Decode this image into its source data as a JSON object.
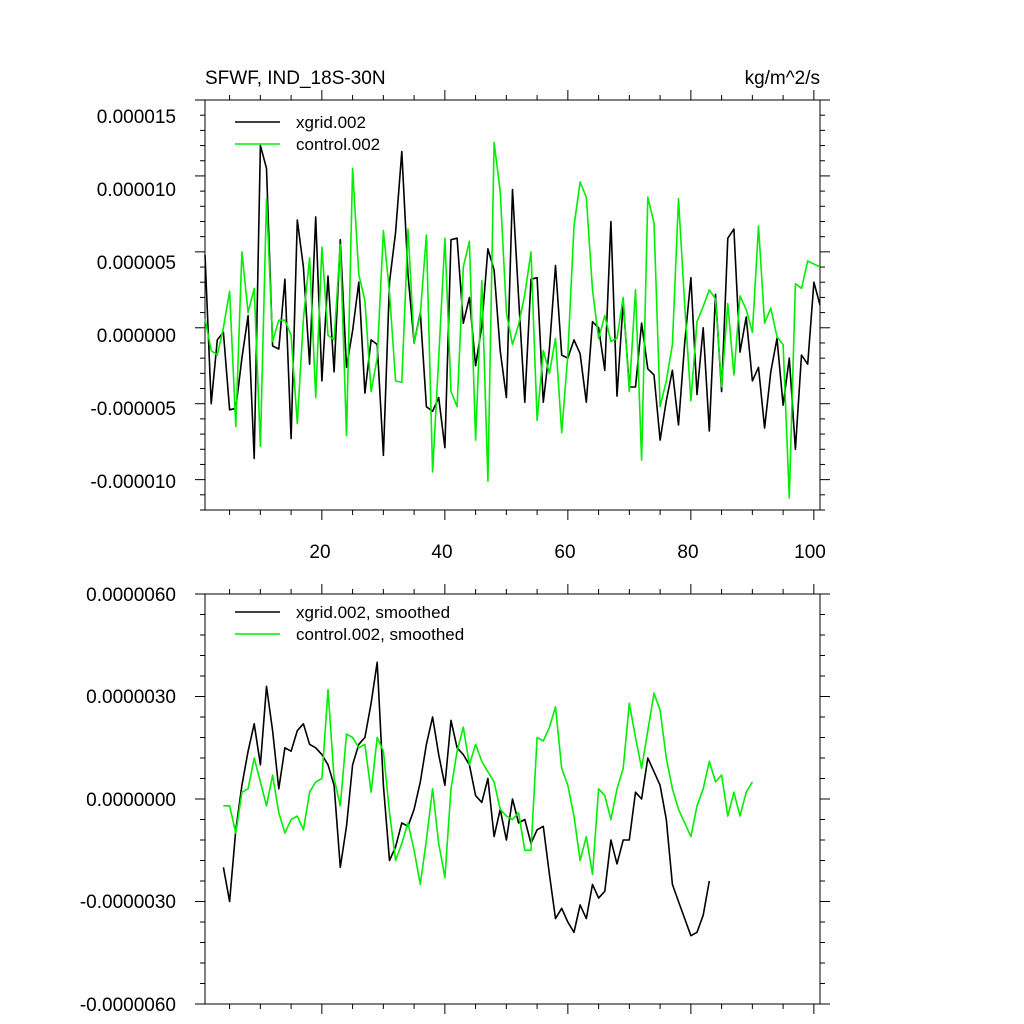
{
  "chart_data": [
    {
      "type": "line",
      "title": "SFWF, IND_18S-30N",
      "units": "kg/m^2/s",
      "xlim": [
        1,
        101
      ],
      "ylim": [
        -1.2e-05,
        1.5e-05
      ],
      "x_ticks": [
        20,
        40,
        60,
        80,
        100
      ],
      "x_tick_labels": [
        "20",
        "40",
        "60",
        "80",
        "100"
      ],
      "y_ticks": [
        1.5e-05,
        1e-05,
        5e-06,
        0,
        -5e-06,
        -1e-05
      ],
      "y_tick_labels": [
        "0.000015",
        "0.000010",
        "0.000005",
        "0.000000",
        "-0.000005",
        "-0.000010"
      ],
      "legend_position": "top-left",
      "series": [
        {
          "name": "xgrid.002",
          "color": "#000000",
          "values": [
            4.8,
            -5.0,
            -0.8,
            -0.3,
            -5.4,
            -5.3,
            -2.0,
            0.8,
            -8.6,
            12.0,
            10.5,
            -1.2,
            -1.4,
            3.2,
            -7.3,
            7.1,
            4.0,
            -2.4,
            7.3,
            -3.5,
            3.4,
            -2.9,
            5.8,
            -2.6,
            -0.2,
            3.0,
            -4.3,
            -0.8,
            -1.1,
            -8.4,
            3.0,
            6.3,
            11.6,
            3.5,
            -1.0,
            1.0,
            -5.2,
            -5.5,
            -4.6,
            -7.9,
            5.8,
            5.9,
            0.3,
            2.0,
            -2.5,
            0.1,
            5.2,
            3.8,
            -1.5,
            -4.6,
            9.1,
            2.0,
            -4.9,
            3.2,
            3.3,
            -4.9,
            -1.4,
            4.1,
            -1.8,
            -2.0,
            -0.8,
            -1.7,
            -4.9,
            0.4,
            0.0,
            -2.8,
            7.0,
            -4.5,
            1.7,
            -3.9,
            -3.9,
            0.3,
            -2.7,
            -3.1,
            -7.4,
            -4.8,
            -2.8,
            -6.4,
            -1.0,
            3.3,
            -4.4,
            0.0,
            -6.8,
            2.2,
            -4.2,
            5.9,
            6.5,
            -1.6,
            0.7,
            -3.5,
            -2.6,
            -6.6,
            -2.9,
            -0.7,
            -5.1,
            -2.0,
            -8.0,
            -1.8,
            -2.4,
            3.0,
            1.5
          ]
        },
        {
          "name": "control.002",
          "color": "#00ee00",
          "values": [
            0.6,
            -1.5,
            -1.8,
            0.0,
            2.4,
            -6.5,
            5.0,
            1.0,
            2.6,
            -7.8,
            8.5,
            -0.9,
            0.5,
            0.5,
            -0.5,
            -6.3,
            0.6,
            4.6,
            -4.6,
            5.3,
            -0.5,
            -0.8,
            5.5,
            -7.1,
            10.5,
            3.5,
            1.8,
            -4.2,
            -2.0,
            6.4,
            2.3,
            -3.5,
            -3.6,
            6.5,
            -1.0,
            0.9,
            6.1,
            -9.5,
            -2.0,
            5.9,
            -4.2,
            -5.2,
            4.0,
            5.7,
            -7.4,
            3.1,
            -10.1,
            12.2,
            9.0,
            1.0,
            -1.1,
            0.2,
            2.2,
            5.0,
            -6.1,
            -1.5,
            -3.0,
            -0.7,
            -6.9,
            -1.8,
            6.7,
            9.6,
            8.6,
            2.5,
            -0.7,
            0.8,
            -0.9,
            -0.7,
            2.0,
            -4.2,
            2.5,
            -8.7,
            8.6,
            6.9,
            -5.2,
            -3.5,
            -1.1,
            8.5,
            1.5,
            -4.8,
            0.4,
            1.4,
            2.5,
            1.9,
            -3.9,
            1.6,
            -3.1,
            2.1,
            1.2,
            -0.3,
            6.7,
            0.3,
            1.3,
            -0.6,
            -1.1,
            -11.2,
            2.9,
            2.6,
            4.4,
            4.2,
            4.0
          ]
        }
      ]
    },
    {
      "type": "line",
      "title": "",
      "units": "",
      "xlim": [
        1,
        101
      ],
      "ylim": [
        -6e-06,
        6e-06
      ],
      "x_ticks": [
        20,
        40,
        60,
        80,
        100
      ],
      "x_tick_labels": [],
      "y_ticks": [
        6e-06,
        3e-06,
        0,
        -3e-06,
        -6e-06
      ],
      "y_tick_labels": [
        "0.0000060",
        "0.0000030",
        "0.0000000",
        "-0.0000030",
        "-0.0000060"
      ],
      "legend_position": "top-left",
      "series": [
        {
          "name": "xgrid.002, smoothed",
          "color": "#000000",
          "x_start": 4,
          "values": [
            -2.0,
            -3.0,
            -0.9,
            0.4,
            1.4,
            2.2,
            1.0,
            3.3,
            2.0,
            0.3,
            1.5,
            1.4,
            2.0,
            2.2,
            1.6,
            1.5,
            1.3,
            1.0,
            0.4,
            -2.0,
            -0.8,
            1.0,
            1.6,
            1.8,
            2.8,
            4.0,
            0.4,
            -1.8,
            -1.4,
            -0.7,
            -0.8,
            -0.3,
            0.5,
            1.6,
            2.4,
            1.3,
            0.4,
            2.3,
            1.5,
            1.3,
            1.0,
            0.1,
            -0.1,
            0.6,
            -1.1,
            -0.3,
            -1.2,
            0.0,
            -0.7,
            -0.6,
            -1.3,
            -0.9,
            -0.8,
            -2.2,
            -3.5,
            -3.2,
            -3.6,
            -3.9,
            -3.1,
            -3.5,
            -2.5,
            -2.9,
            -2.7,
            -1.2,
            -1.9,
            -1.2,
            -1.2,
            0.2,
            0.0,
            1.2,
            0.8,
            0.4,
            -0.6,
            -2.5,
            -3.0,
            -3.5,
            -4.0,
            -3.9,
            -3.4,
            -2.4
          ]
        },
        {
          "name": "control.002, smoothed",
          "color": "#00ee00",
          "x_start": 4,
          "values": [
            -0.2,
            -0.2,
            -1.0,
            0.2,
            0.3,
            1.2,
            0.5,
            -0.2,
            0.7,
            -0.4,
            -1.0,
            -0.6,
            -0.5,
            -0.9,
            0.2,
            0.5,
            0.6,
            3.2,
            0.6,
            -0.2,
            1.9,
            1.8,
            1.5,
            1.6,
            0.2,
            1.8,
            1.4,
            -0.4,
            -1.8,
            -1.3,
            -0.7,
            -1.5,
            -2.5,
            -1.2,
            0.3,
            -1.3,
            -2.3,
            0.3,
            1.4,
            2.1,
            1.0,
            1.6,
            1.1,
            0.8,
            0.5,
            -0.3,
            -0.5,
            -0.6,
            -0.4,
            -1.5,
            -1.5,
            1.8,
            1.7,
            2.1,
            2.7,
            0.9,
            0.4,
            -0.5,
            -1.8,
            -1.1,
            -2.2,
            0.3,
            0.1,
            -0.6,
            0.3,
            0.9,
            2.8,
            1.8,
            0.9,
            2.0,
            3.1,
            2.6,
            1.2,
            0.3,
            -0.3,
            -0.7,
            -1.1,
            -0.2,
            0.3,
            1.1,
            0.5,
            0.7,
            -0.5,
            0.2,
            -0.5,
            0.2,
            0.5
          ]
        }
      ]
    }
  ]
}
